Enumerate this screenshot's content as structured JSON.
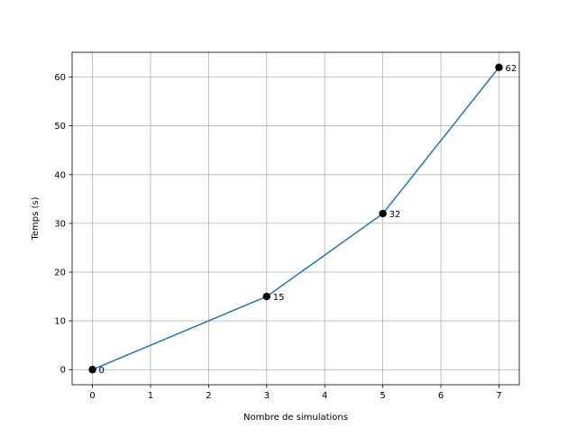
{
  "chart_data": {
    "type": "line",
    "title": "",
    "xlabel": "Nombre de simulations",
    "ylabel": "Temps (s)",
    "xlim": [
      -0.35,
      7.35
    ],
    "ylim": [
      -3.1,
      65.1
    ],
    "xticks": [
      0,
      1,
      2,
      3,
      4,
      5,
      6,
      7
    ],
    "yticks": [
      0,
      10,
      20,
      30,
      40,
      50,
      60
    ],
    "grid": true,
    "series": [
      {
        "x": [
          0,
          3,
          5,
          7
        ],
        "y": [
          0,
          15,
          32,
          62
        ],
        "data_labels": [
          "0",
          "15",
          "32",
          "62"
        ]
      }
    ],
    "colors": {
      "line": "#1f77b4",
      "marker": "#000000",
      "grid": "#b0b0b0",
      "axes": "#000000"
    }
  }
}
